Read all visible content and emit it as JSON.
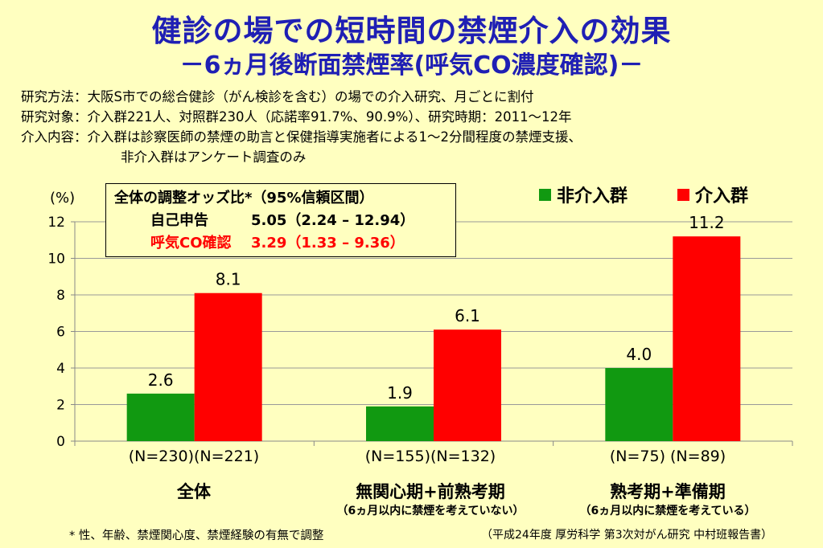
{
  "title": "健診の場での短時間の禁煙介入の効果",
  "subtitle": "－6ヵ月後断面禁煙率(呼気CO濃度確認)－",
  "method_lines": [
    "研究方法：大阪S市での総合健診（がん検診を含む）の場での介入研究、月ごとに割付",
    "研究対象：介入群221人、対照群230人（応諾率91.7%、90.9%）、研究時期：2011～12年",
    "介入内容：介入群は診察医師の禁煙の助言と保健指導実施者による1～2分間程度の禁煙支援、",
    "非介入群はアンケート調査のみ"
  ],
  "odds_box": {
    "header": "全体の調整オッズ比*（95%信頼区間）",
    "rows": [
      {
        "label": "自己申告",
        "value": "5.05（2.24 – 12.94）"
      },
      {
        "label": "呼気CO確認",
        "value": "3.29（1.33 –   9.36）"
      }
    ]
  },
  "footnote_left": "* 性、年齢、禁煙関心度、禁煙経験の有無で調整",
  "footnote_right": "（平成24年度 厚労科学 第3次対がん研究 中村班報告書）",
  "colors": {
    "non_intervention": "#119911",
    "intervention": "#ff0000",
    "background": "#ffffc0",
    "title": "#1f1fb4"
  },
  "chart_data": {
    "type": "bar",
    "ylabel": "(%)",
    "ylim": [
      0,
      12
    ],
    "yticks": [
      0,
      2,
      4,
      6,
      8,
      10,
      12
    ],
    "grid": true,
    "legend_position": "top-right",
    "categories": [
      "全体",
      "無関心期+前熟考期",
      "熟考期+準備期"
    ],
    "category_sublabels": [
      "",
      "（6ヵ月以内に禁煙を考えていない）",
      "（6ヵ月以内に禁煙を考えている）"
    ],
    "n_labels": [
      "(N=230)(N=221)",
      "(N=155)(N=132)",
      "(N=75)   (N=89)"
    ],
    "series": [
      {
        "name": "非介入群",
        "values": [
          2.6,
          1.9,
          4.0
        ],
        "labels": [
          "2.6",
          "1.9",
          "4.0"
        ]
      },
      {
        "name": "介入群",
        "values": [
          8.1,
          6.1,
          11.2
        ],
        "labels": [
          "8.1",
          "6.1",
          "11.2"
        ]
      }
    ]
  }
}
